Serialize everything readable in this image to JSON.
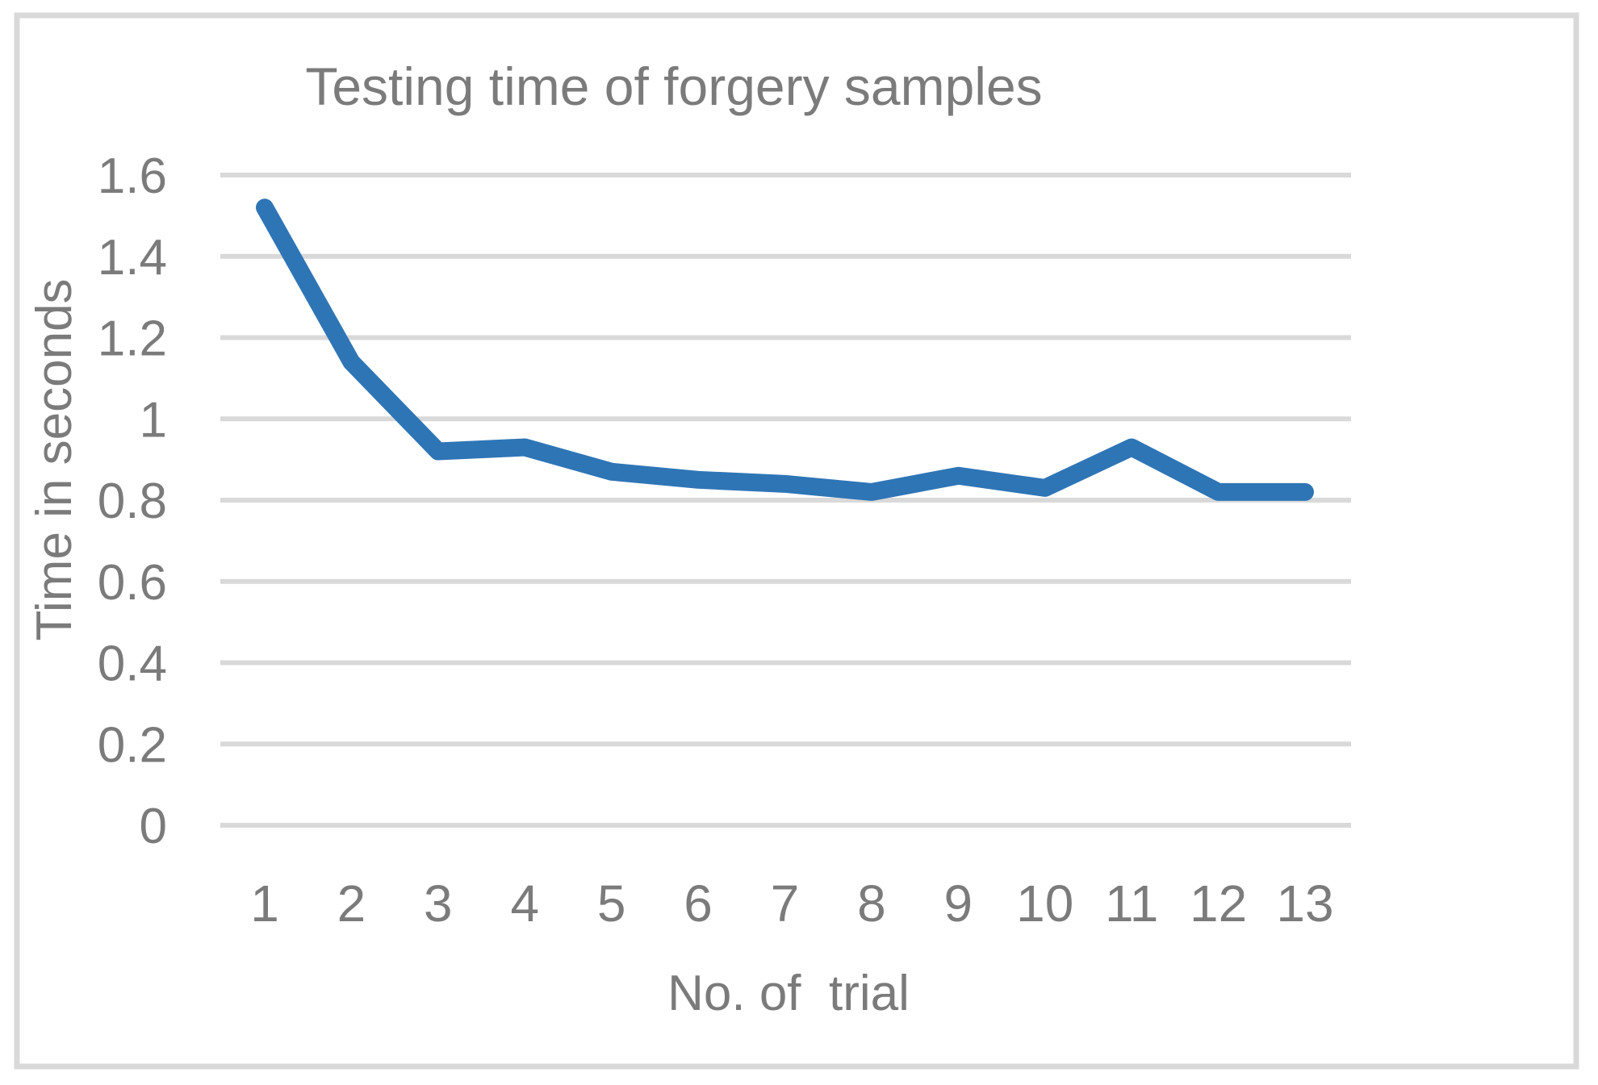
{
  "chart": {
    "title": "Testing time of forgery samples",
    "x_axis_title": "No. of  trial",
    "y_axis_title": "Time in seconds"
  },
  "chart_data": {
    "type": "line",
    "title": "Testing time of forgery samples",
    "xlabel": "No. of  trial",
    "ylabel": "Time in seconds",
    "categories": [
      "1",
      "2",
      "3",
      "4",
      "5",
      "6",
      "7",
      "8",
      "9",
      "10",
      "11",
      "12",
      "13"
    ],
    "values": [
      1.52,
      1.14,
      0.92,
      0.93,
      0.87,
      0.85,
      0.84,
      0.82,
      0.86,
      0.83,
      0.93,
      0.82,
      0.82
    ],
    "ylim": [
      0,
      1.6
    ],
    "ytick_step": 0.2,
    "ytick_labels": [
      "0",
      "0.2",
      "0.4",
      "0.6",
      "0.8",
      "1",
      "1.2",
      "1.4",
      "1.6"
    ],
    "grid": true,
    "legend_position": "none",
    "line_color": "#2E75B6",
    "gridline_color": "#D9D9D9",
    "border_color": "#D9D9D9",
    "text_color": "#7B7B7B",
    "background_color": "#FFFFFF"
  }
}
